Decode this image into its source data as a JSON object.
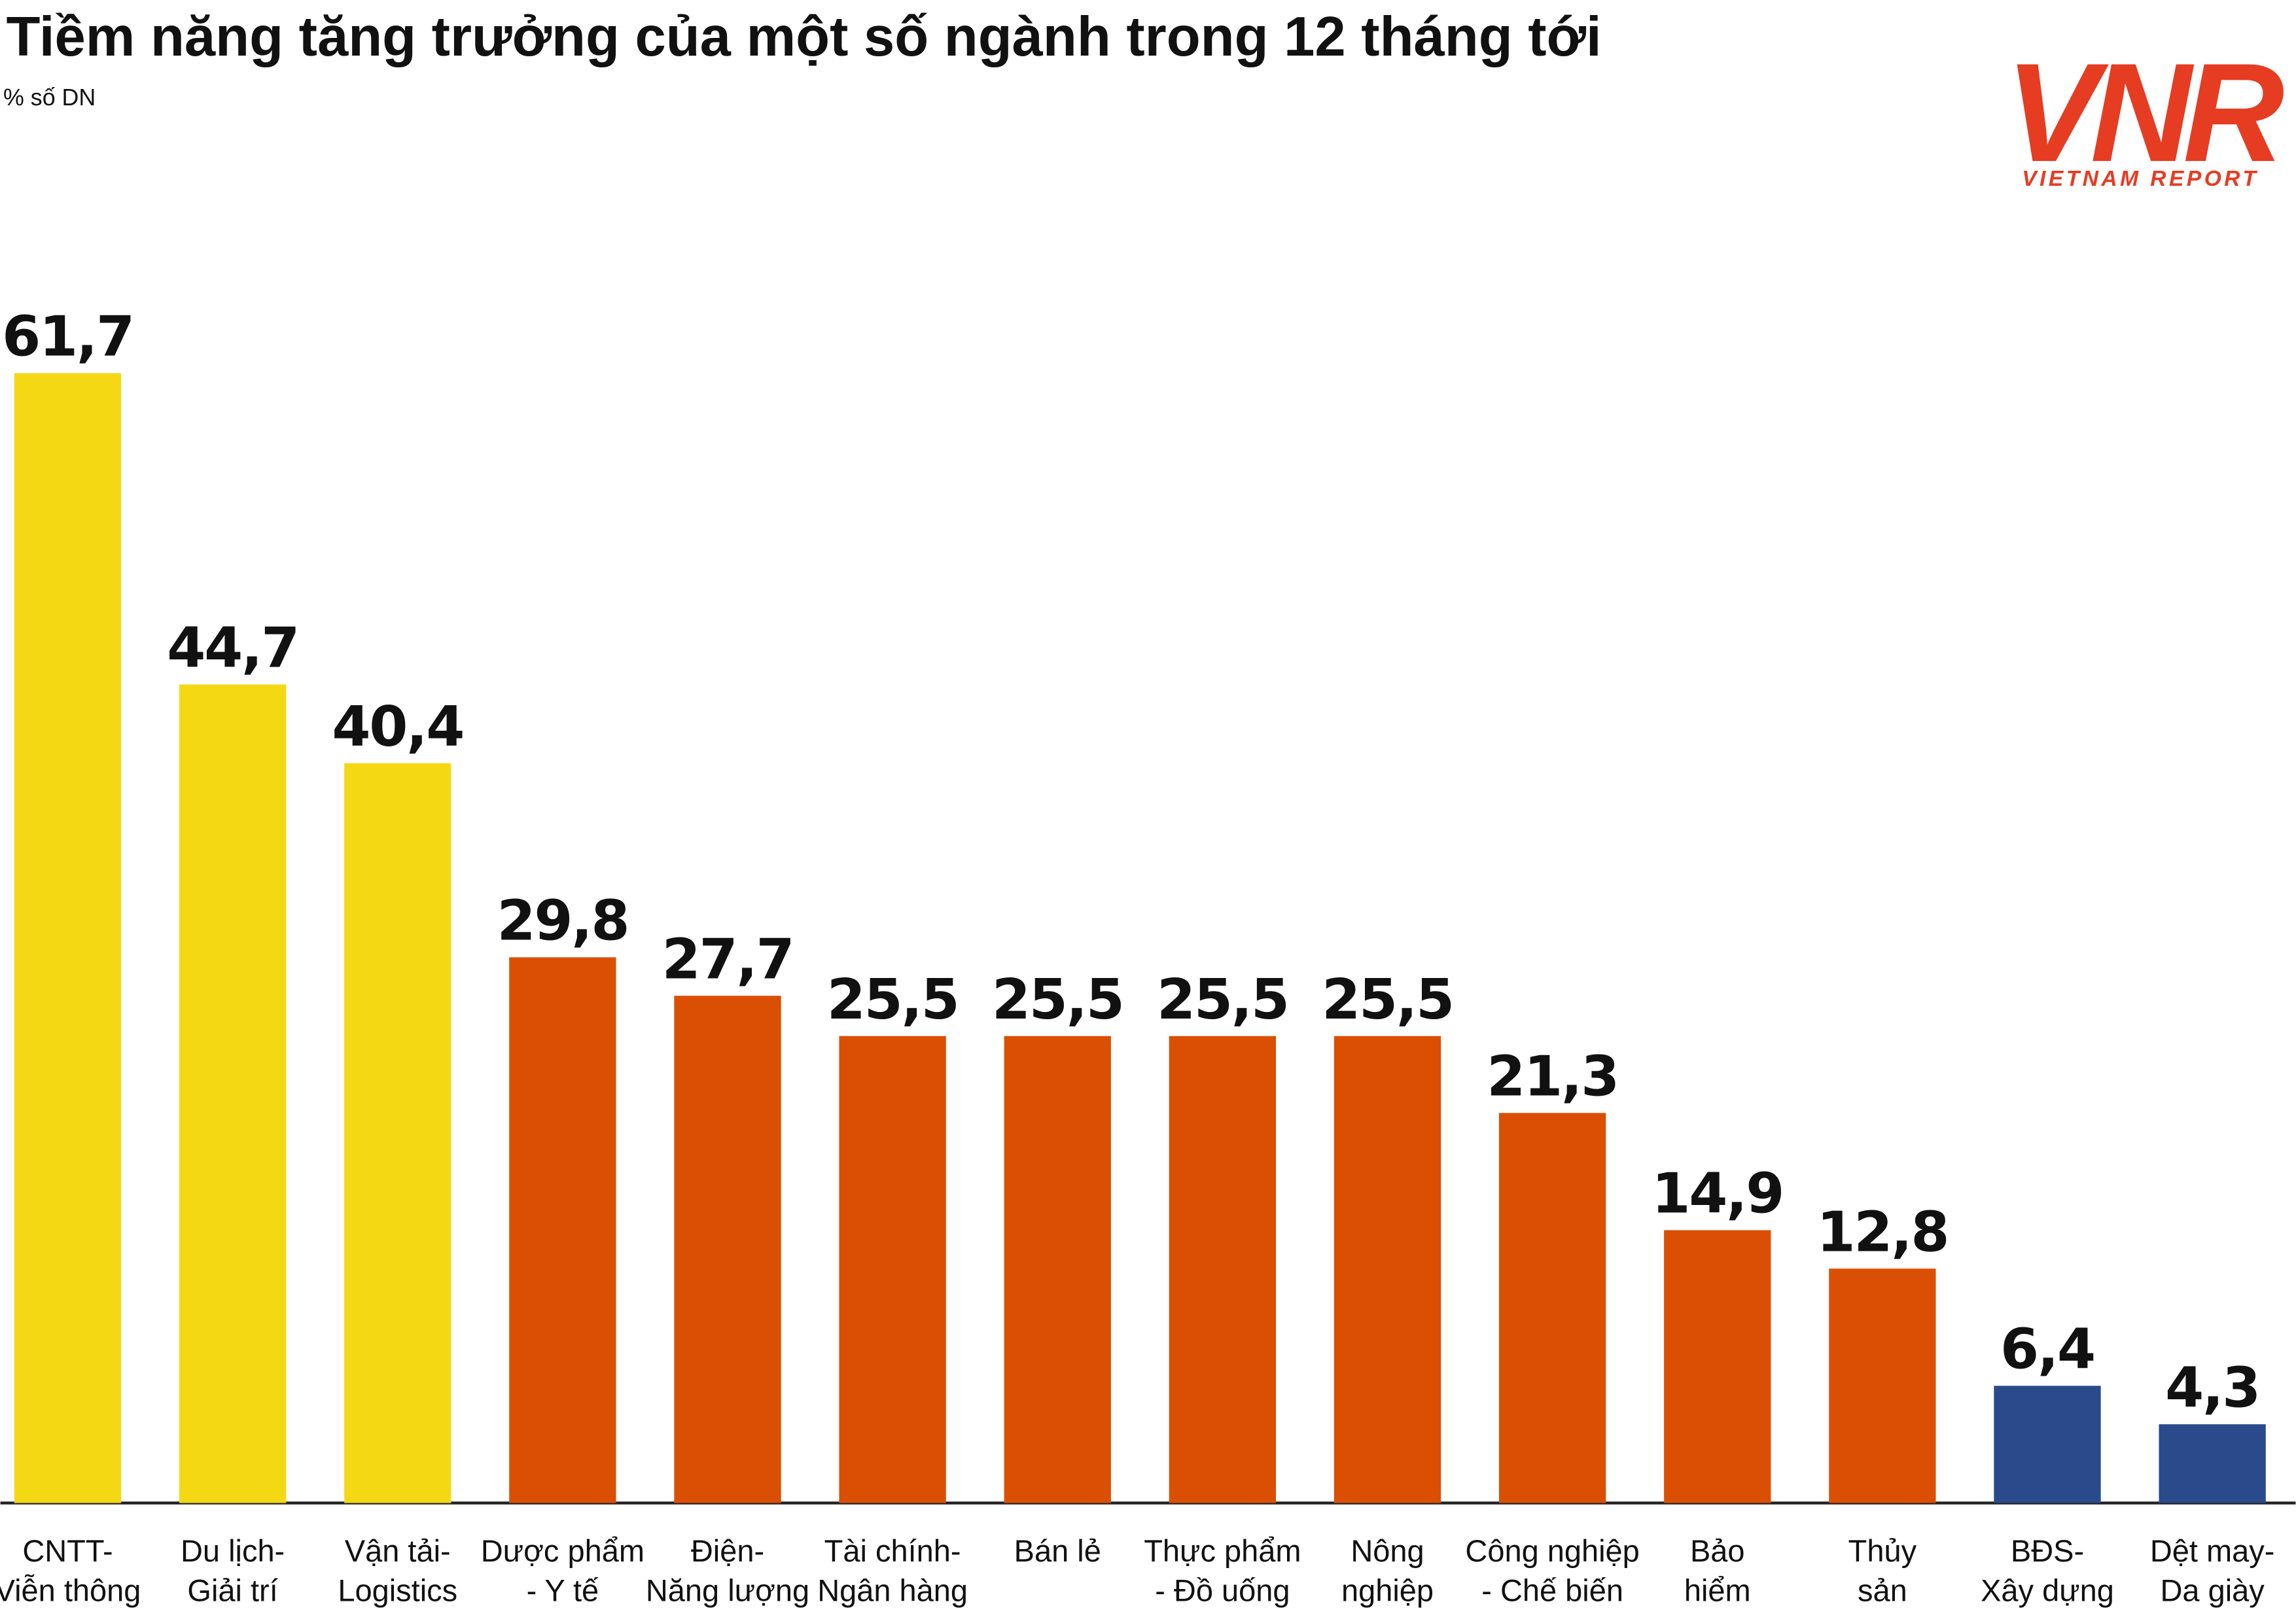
{
  "chart_data": {
    "type": "bar",
    "title": "Tiềm năng tăng trưởng của một số ngành trong 12 tháng tới",
    "subtitle": "% số DN",
    "logo_text": "VNR",
    "logo_caption": "VIETNAM REPORT",
    "categories": [
      "CNTT-\nViễn thông",
      "Du lịch-\nGiải trí",
      "Vận tải-\nLogistics",
      "Dược phẩm\n- Y tế",
      "Điện-\nNăng lượng",
      "Tài chính-\nNgân hàng",
      "Bán lẻ",
      "Thực phẩm\n- Đồ uống",
      "Nông\nnghiệp",
      "Công nghiệp\n- Chế biến",
      "Bảo\nhiểm",
      "Thủy\nsản",
      "BĐS-\nXây dựng",
      "Dệt may-\nDa giày"
    ],
    "values": [
      61.7,
      44.7,
      40.4,
      29.8,
      27.7,
      25.5,
      25.5,
      25.5,
      25.5,
      21.3,
      14.9,
      12.8,
      6.4,
      4.3
    ],
    "value_labels": [
      "61,7",
      "44,7",
      "40,4",
      "29,8",
      "27,7",
      "25,5",
      "25,5",
      "25,5",
      "25,5",
      "21,3",
      "14,9",
      "12,8",
      "6,4",
      "4,3"
    ],
    "colors": [
      "#f5d814",
      "#f5d814",
      "#f5d814",
      "#db4f05",
      "#db4f05",
      "#db4f05",
      "#db4f05",
      "#db4f05",
      "#db4f05",
      "#db4f05",
      "#db4f05",
      "#db4f05",
      "#2a4a8c",
      "#2a4a8c"
    ]
  }
}
